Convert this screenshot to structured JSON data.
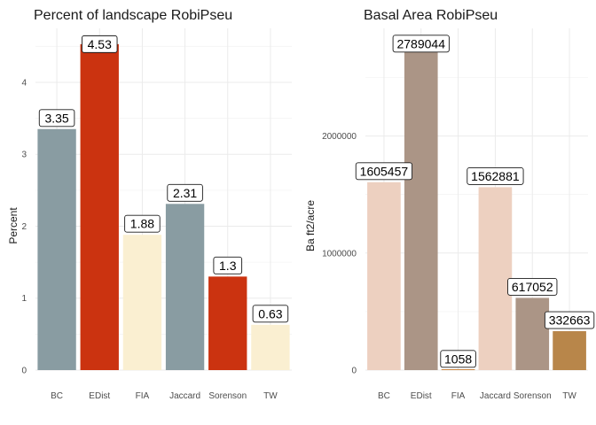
{
  "chart_data": [
    {
      "type": "bar",
      "title": "Percent of landscape  RobiPseu",
      "ylabel": "Percent",
      "xlabel": "",
      "categories": [
        "BC",
        "EDist",
        "FIA",
        "Jaccard",
        "Sorenson",
        "TW"
      ],
      "values": [
        3.35,
        4.53,
        1.88,
        2.31,
        1.3,
        0.63
      ],
      "data_labels": [
        "3.35",
        "4.53",
        "1.88",
        "2.31",
        "1.3",
        "0.63"
      ],
      "colors": [
        "#899CA2",
        "#CB3310",
        "#FAEFD1",
        "#899CA2",
        "#CB3310",
        "#FAEFD1"
      ],
      "ylim": [
        0,
        4.75
      ],
      "yticks": [
        0,
        1,
        2,
        3,
        4
      ],
      "ytick_labels": [
        "0",
        "1",
        "2",
        "3",
        "4"
      ],
      "grid": true,
      "legend": "none"
    },
    {
      "type": "bar",
      "title": "Basal Area  RobiPseu",
      "ylabel": "Ba ft2/acre",
      "xlabel": "",
      "categories": [
        "BC",
        "EDist",
        "FIA",
        "Jaccard",
        "Sorenson",
        "TW"
      ],
      "values": [
        1605457,
        2789044,
        1058,
        1562881,
        617052,
        332663
      ],
      "data_labels": [
        "1605457",
        "2789044",
        "1058",
        "1562881",
        "617052",
        "332663"
      ],
      "colors": [
        "#EDD0C0",
        "#AB9586",
        "#CC8844",
        "#EDD0C0",
        "#AB9586",
        "#B8864A"
      ],
      "ylim": [
        0,
        2920000
      ],
      "yticks": [
        0,
        1000000,
        2000000
      ],
      "ytick_labels": [
        "0",
        "1000000",
        "2000000"
      ],
      "grid": true,
      "legend": "none"
    }
  ]
}
